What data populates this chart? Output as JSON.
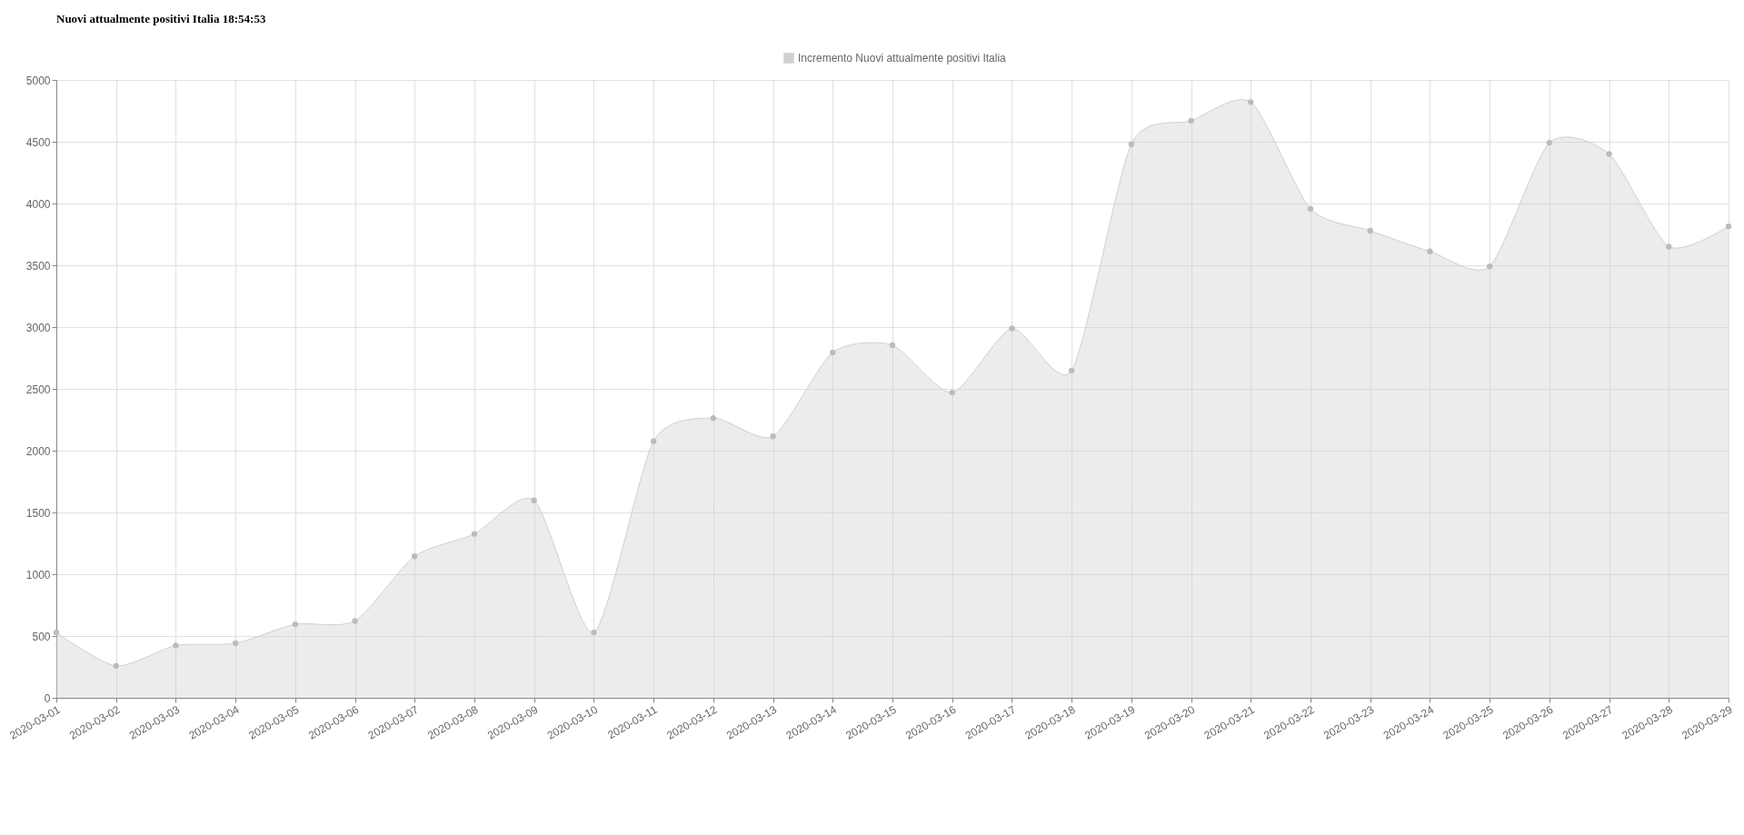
{
  "chart_data": {
    "type": "area",
    "title": "Nuovi attualmente positivi Italia 18:54:53",
    "categories": [
      "2020-03-01",
      "2020-03-02",
      "2020-03-03",
      "2020-03-04",
      "2020-03-05",
      "2020-03-06",
      "2020-03-07",
      "2020-03-08",
      "2020-03-09",
      "2020-03-10",
      "2020-03-11",
      "2020-03-12",
      "2020-03-13",
      "2020-03-14",
      "2020-03-15",
      "2020-03-16",
      "2020-03-17",
      "2020-03-18",
      "2020-03-19",
      "2020-03-20",
      "2020-03-21",
      "2020-03-22",
      "2020-03-23",
      "2020-03-24",
      "2020-03-25",
      "2020-03-26",
      "2020-03-27",
      "2020-03-28",
      "2020-03-29"
    ],
    "series": [
      {
        "name": "Incremento Nuovi attualmente positivi Italia",
        "color": "#d0d0d0",
        "values": [
          528,
          258,
          423,
          441,
          595,
          622,
          1145,
          1326,
          1598,
          529,
          2076,
          2264,
          2116,
          2795,
          2853,
          2470,
          2989,
          2648,
          4480,
          4670,
          4821,
          3957,
          3780,
          3612,
          3491,
          4492,
          4401,
          3651,
          3815
        ]
      }
    ],
    "ylim": [
      0,
      5000
    ],
    "yticks": [
      0,
      500,
      1000,
      1500,
      2000,
      2500,
      3000,
      3500,
      4000,
      4500,
      5000
    ],
    "grid": true,
    "legend": "top",
    "marker": "circle",
    "line_style": "solid"
  }
}
